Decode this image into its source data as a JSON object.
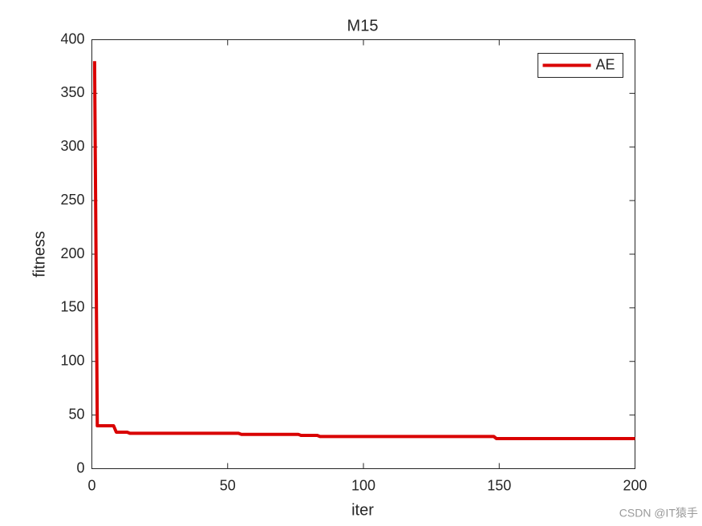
{
  "chart_data": {
    "type": "line",
    "title": "M15",
    "x_label": "iter",
    "y_label": "fitness",
    "x": [
      1,
      2,
      8,
      9,
      13,
      14,
      54,
      55,
      76,
      77,
      83,
      84,
      148,
      149,
      200
    ],
    "series": [
      {
        "name": "AE",
        "color": "#d90000",
        "values": [
          380,
          40,
          40,
          34,
          34,
          33,
          33,
          32,
          32,
          31,
          31,
          30,
          30,
          28,
          28
        ]
      }
    ],
    "xlim": [
      0,
      200
    ],
    "xticks": [
      0,
      50,
      100,
      150,
      200
    ],
    "ylim": [
      0,
      400
    ],
    "yticks": [
      0,
      50,
      100,
      150,
      200,
      250,
      300,
      350,
      400
    ],
    "grid": false,
    "legend": "top-right"
  },
  "watermark": "CSDN @IT猿手"
}
